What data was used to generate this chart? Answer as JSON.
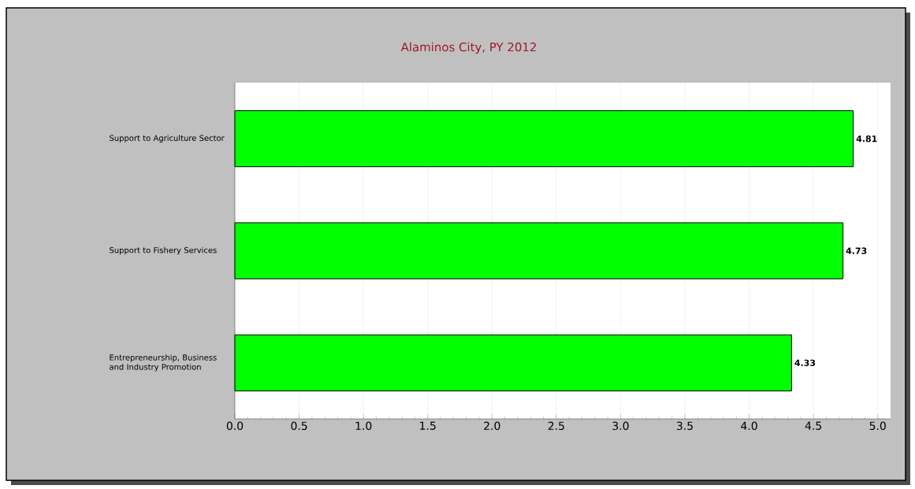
{
  "chart_data": {
    "type": "bar",
    "orientation": "horizontal",
    "title": "Alaminos City, PY 2012",
    "categories": [
      "Support to Agriculture Sector",
      "Support to Fishery Services",
      "Entrepreneurship, Business and Industry Promotion"
    ],
    "values": [
      4.81,
      4.73,
      4.33
    ],
    "color": "#00ff00",
    "data_labels": true,
    "xlim": [
      0,
      5.1
    ],
    "xticks": [
      {
        "value": 0,
        "label": "0.0"
      },
      {
        "value": 0.5,
        "label": "0.5"
      },
      {
        "value": 1,
        "label": "1.0"
      },
      {
        "value": 1.5,
        "label": "1.5"
      },
      {
        "value": 2,
        "label": "2.0"
      },
      {
        "value": 2.5,
        "label": "2.5"
      },
      {
        "value": 3,
        "label": "3.0"
      },
      {
        "value": 3.5,
        "label": "3.5"
      },
      {
        "value": 4,
        "label": "4.0"
      },
      {
        "value": 4.5,
        "label": "4.5"
      },
      {
        "value": 5,
        "label": "5.0"
      }
    ],
    "grid": "x"
  }
}
